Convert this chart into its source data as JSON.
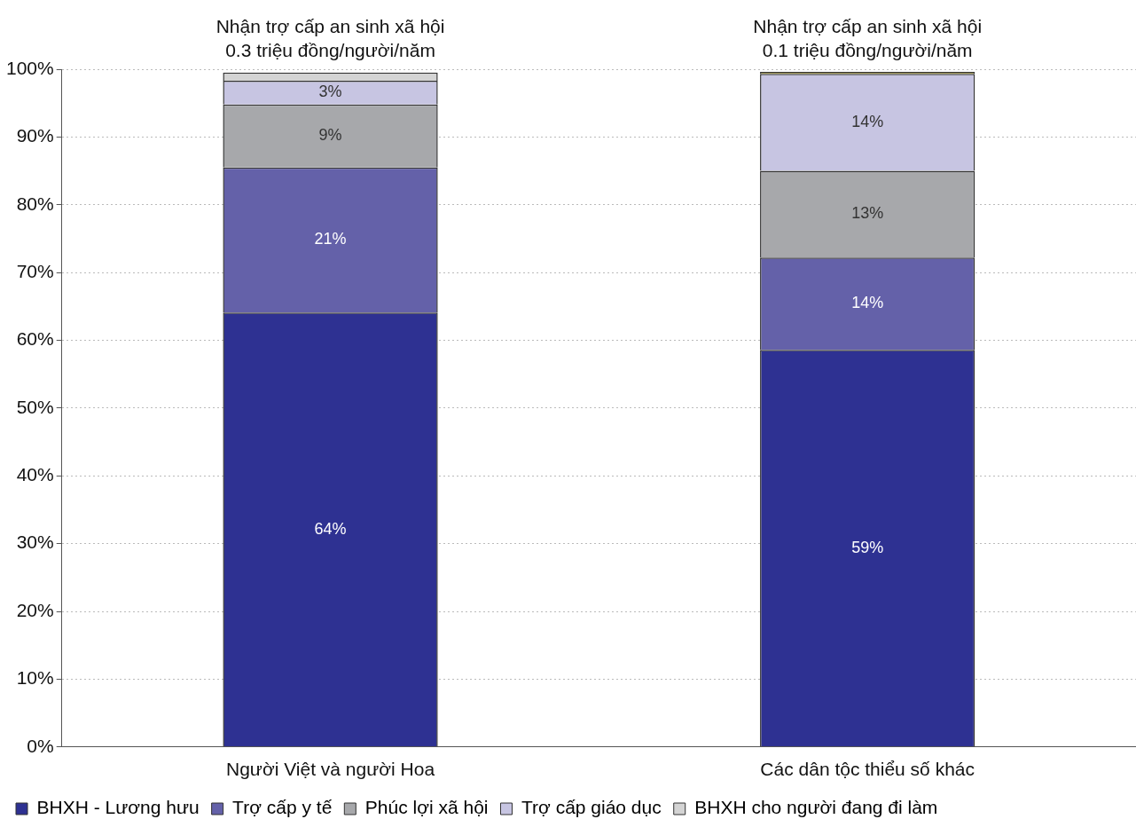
{
  "chart_data": {
    "type": "bar",
    "stacked": true,
    "categories": [
      "Người Việt và người Hoa",
      "Các dân tộc thiểu số khác"
    ],
    "series": [
      {
        "name": "BHXH - Lương hưu",
        "color": "#2e3192",
        "values": [
          64.1,
          58.6
        ],
        "value_labels": [
          "64%",
          "59%"
        ]
      },
      {
        "name": "Trợ cấp y tế",
        "color": "#6461a9",
        "values": [
          21.4,
          13.6
        ],
        "value_labels": [
          "21%",
          "14%"
        ]
      },
      {
        "name": "Phúc lợi xã hội",
        "color": "#a7a8ab",
        "values": [
          9.3,
          12.8
        ],
        "value_labels": [
          "9%",
          "13%"
        ]
      },
      {
        "name": "Trợ cấp giáo dục",
        "color": "#c7c5e2",
        "values": [
          3.5,
          14.3
        ],
        "value_labels": [
          "3%",
          "14%"
        ]
      },
      {
        "name": "BHXH cho người đang đi làm",
        "color": "#d4d4d4",
        "colors": [
          "#d4d4d4",
          "#8a7f2a"
        ],
        "values": [
          1.2,
          0.3
        ]
      }
    ],
    "ylim": [
      0,
      100
    ],
    "yticks": [
      {
        "value": 0,
        "label": "0%"
      },
      {
        "value": 10,
        "label": "10%"
      },
      {
        "value": 20,
        "label": "20%"
      },
      {
        "value": 30,
        "label": "30%"
      },
      {
        "value": 40,
        "label": "40%"
      },
      {
        "value": 50,
        "label": "50%"
      },
      {
        "value": 60,
        "label": "60%"
      },
      {
        "value": 70,
        "label": "70%"
      },
      {
        "value": 80,
        "label": "80%"
      },
      {
        "value": 90,
        "label": "90%"
      },
      {
        "value": 100,
        "label": "100%"
      }
    ],
    "grid": "y",
    "legend": "bottom",
    "annotations": [
      "Nhận trợ cấp an sinh xã hội\n0.3 triệu đồng/người/năm",
      "Nhận trợ cấp an sinh xã hội\n0.1 triệu đồng/người/năm"
    ]
  }
}
